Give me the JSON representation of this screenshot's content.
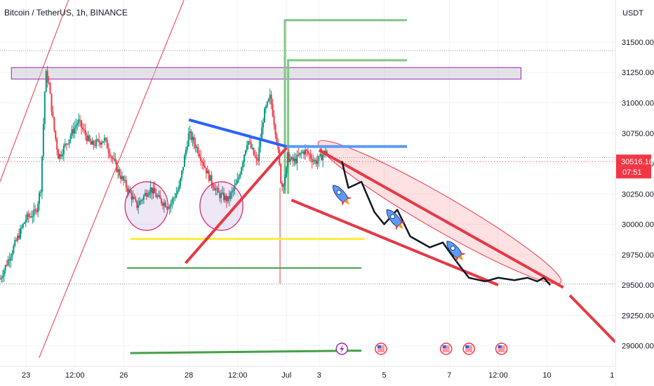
{
  "chart_data": {
    "type": "candlestick",
    "title": "Bitcoin / TetherUS, 1h, BINANCE",
    "currency": "USDT",
    "ylim": [
      28900,
      31800
    ],
    "y_ticks": [
      "31500.00",
      "31250.00",
      "31000.00",
      "30750.00",
      "30500.00",
      "30250.00",
      "30000.00",
      "29750.00",
      "29500.00",
      "29250.00",
      "29000.00"
    ],
    "y_tick_values": [
      31500,
      31250,
      31000,
      30750,
      30500,
      30250,
      30000,
      29750,
      29500,
      29250,
      29000
    ],
    "x_ticks": [
      "23",
      "12:00",
      "26",
      "28",
      "12:00",
      "Jul",
      "3",
      "5",
      "7",
      "12:00",
      "10",
      "1"
    ],
    "x_tick_days": [
      0,
      1.5,
      3,
      5,
      6.5,
      8,
      9,
      11,
      13,
      14.5,
      16,
      18
    ],
    "x_range_days": [
      -0.8,
      18.1
    ],
    "last_price": "30516.16",
    "countdown": "07:51",
    "last_price_value": 30516.16,
    "dotted_levels": [
      31430,
      30550,
      29510
    ],
    "price_data_days": [
      -0.8,
      8
    ],
    "price_path": [
      [
        -0.8,
        29550
      ],
      [
        -0.4,
        29800
      ],
      [
        0,
        30050
      ],
      [
        0.3,
        30100
      ],
      [
        0.45,
        30300
      ],
      [
        0.6,
        31250
      ],
      [
        0.7,
        31150
      ],
      [
        0.85,
        30800
      ],
      [
        1.0,
        30550
      ],
      [
        1.3,
        30700
      ],
      [
        1.6,
        30850
      ],
      [
        2.0,
        30650
      ],
      [
        2.4,
        30700
      ],
      [
        2.8,
        30450
      ],
      [
        3.1,
        30300
      ],
      [
        3.4,
        30150
      ],
      [
        3.8,
        30300
      ],
      [
        4.1,
        30200
      ],
      [
        4.4,
        30150
      ],
      [
        4.7,
        30300
      ],
      [
        5.0,
        30750
      ],
      [
        5.3,
        30600
      ],
      [
        5.6,
        30400
      ],
      [
        5.9,
        30250
      ],
      [
        6.2,
        30200
      ],
      [
        6.5,
        30350
      ],
      [
        6.8,
        30700
      ],
      [
        7.1,
        30500
      ],
      [
        7.3,
        30900
      ],
      [
        7.5,
        31050
      ],
      [
        7.7,
        30700
      ],
      [
        7.85,
        30300
      ],
      [
        8.0,
        30450
      ]
    ],
    "annotations": {
      "resistance_zone": {
        "x": [
          -0.45,
          15.2
        ],
        "y": [
          31195,
          31290
        ],
        "color": "#9c27b0"
      },
      "long_green_steps": {
        "x_start": 7.95,
        "x_end": 11.7,
        "y_top": 31680,
        "y_mid": 31350,
        "color": "#81c784"
      },
      "blue_descending_line": {
        "points": [
          [
            5.0,
            30860
          ],
          [
            8.0,
            30640
          ]
        ],
        "color": "#2962ff"
      },
      "blue_horizontal": {
        "points": [
          [
            8.0,
            30640
          ],
          [
            11.7,
            30640
          ]
        ],
        "color": "#5b9cf6"
      },
      "red_ascending_line": {
        "points": [
          [
            4.9,
            29680
          ],
          [
            8.0,
            30630
          ]
        ],
        "color": "#e53945"
      },
      "channel_upper": {
        "points": [
          [
            9.0,
            30610
          ],
          [
            16.5,
            29480
          ]
        ],
        "color": "#e53945"
      },
      "channel_lower": {
        "points": [
          [
            8.15,
            30200
          ],
          [
            14.5,
            29500
          ]
        ],
        "color": "#e53945"
      },
      "channel_extension": {
        "points": [
          [
            16.7,
            29415
          ],
          [
            18.1,
            29030
          ]
        ],
        "color": "#e53945"
      },
      "yellow_support": {
        "points": [
          [
            3.2,
            29880
          ],
          [
            10.4,
            29880
          ]
        ],
        "color": "#ffeb3b"
      },
      "green_support_1": {
        "points": [
          [
            3.1,
            29640
          ],
          [
            10.3,
            29640
          ]
        ],
        "color": "#43a047"
      },
      "green_support_2": {
        "points": [
          [
            3.2,
            28940
          ],
          [
            10.3,
            28960
          ]
        ],
        "color": "#43a047"
      },
      "red_ellipses": [
        {
          "cx": 3.7,
          "cy": 30150,
          "rx": 0.66,
          "ry": 200
        },
        {
          "cx": 6.0,
          "cy": 30150,
          "rx": 0.66,
          "ry": 200
        }
      ],
      "pink_ellipse": {
        "cx": 12.7,
        "cy": 30100,
        "rx": 4.3,
        "ry": 140,
        "angle": 30
      },
      "black_path": [
        [
          9.7,
          30520
        ],
        [
          9.9,
          30300
        ],
        [
          10.3,
          30350
        ],
        [
          10.7,
          30100
        ],
        [
          11.0,
          30000
        ],
        [
          11.4,
          30120
        ],
        [
          11.8,
          29900
        ],
        [
          12.4,
          29810
        ],
        [
          12.8,
          29850
        ],
        [
          13.2,
          29700
        ],
        [
          13.6,
          29560
        ],
        [
          14.1,
          29530
        ],
        [
          14.5,
          29560
        ],
        [
          15.0,
          29540
        ],
        [
          15.4,
          29560
        ],
        [
          15.7,
          29530
        ],
        [
          15.9,
          29560
        ],
        [
          16.1,
          29500
        ]
      ],
      "event_days": [
        9.7,
        10.9,
        12.9,
        13.6,
        14.6
      ]
    }
  }
}
